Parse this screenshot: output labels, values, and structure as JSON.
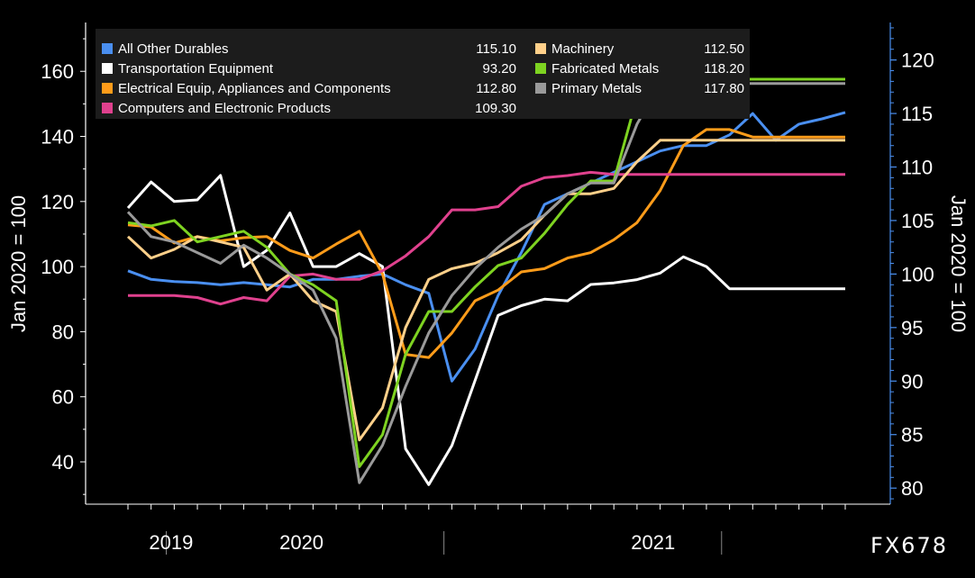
{
  "brand_mark": "FX678",
  "chart_data": {
    "type": "line",
    "ylabel_left": "Jan 2020 = 100",
    "ylabel_right": "Jan 2020 = 100",
    "ylim_left": [
      27,
      175
    ],
    "ylim_right": [
      78.5,
      123.5
    ],
    "yticks_left": [
      40,
      60,
      80,
      100,
      120,
      140,
      160
    ],
    "yticks_right": [
      80,
      85,
      90,
      95,
      100,
      105,
      110,
      115,
      120
    ],
    "year_labels": [
      "2019",
      "2020",
      "2021"
    ],
    "x": [
      "2018-11",
      "2018-12",
      "2019-01",
      "2019-02",
      "2019-03",
      "2019-04",
      "2019-05",
      "2019-06",
      "2019-07",
      "2019-08",
      "2019-09",
      "2019-10",
      "2019-11",
      "2019-12",
      "2020-01",
      "2020-02",
      "2020-03",
      "2020-04",
      "2020-05",
      "2020-06",
      "2020-07",
      "2020-08",
      "2020-09",
      "2020-10",
      "2020-11",
      "2020-12",
      "2021-01",
      "2021-02",
      "2021-03",
      "2021-04",
      "2021-05",
      "2021-06"
    ],
    "legend_placement": "top-left",
    "grid": false,
    "series": [
      {
        "name": "All Other Durables",
        "value_label": "115.10",
        "color": "#4a8ff0",
        "axis": "right",
        "values": [
          100.3,
          99.5,
          99.3,
          99.2,
          99.0,
          99.2,
          99.0,
          98.8,
          99.5,
          99.5,
          99.8,
          100.0,
          99.0,
          98.2,
          90.0,
          93.0,
          98.0,
          102.0,
          106.5,
          107.5,
          108.5,
          109.5,
          110.5,
          111.5,
          112.0,
          112.0,
          113.0,
          115.0,
          112.5,
          114.0,
          114.5,
          115.1
        ]
      },
      {
        "name": "Transportation Equipment",
        "value_label": "93.20",
        "color": "#ffffff",
        "axis": "left",
        "values": [
          118,
          126,
          120,
          120.5,
          128,
          100,
          105,
          116.5,
          100,
          100,
          104,
          100,
          44,
          33,
          45,
          65,
          85,
          88,
          90,
          89.5,
          94.5,
          95,
          96,
          98,
          103,
          100,
          93.2,
          93.2,
          93.2,
          93.2,
          93.2,
          93.2
        ]
      },
      {
        "name": "Electrical Equip, Appliances and Components",
        "value_label": "112.80",
        "color": "#ff9c1a",
        "axis": "right",
        "values": [
          104.6,
          104.4,
          102.9,
          103.5,
          103.1,
          103.4,
          103.5,
          102.2,
          101.5,
          102.8,
          104.0,
          100.0,
          92.5,
          92.2,
          94.5,
          97.5,
          98.5,
          100.2,
          100.5,
          101.5,
          102.0,
          103.2,
          104.8,
          107.8,
          112.0,
          113.5,
          113.5,
          112.8,
          112.8,
          112.8,
          112.8,
          112.8
        ]
      },
      {
        "name": "Computers and Electronic Products",
        "value_label": "109.30",
        "color": "#e0418e",
        "axis": "right",
        "values": [
          98.0,
          98.0,
          98.0,
          97.8,
          97.2,
          97.8,
          97.5,
          99.8,
          100.0,
          99.5,
          99.5,
          100.3,
          101.7,
          103.5,
          106.0,
          106.0,
          106.3,
          108.2,
          109.0,
          109.2,
          109.5,
          109.3,
          109.3,
          109.3,
          109.3,
          109.3,
          109.3,
          109.3,
          109.3,
          109.3,
          109.3,
          109.3
        ]
      },
      {
        "name": "Machinery",
        "value_label": "112.50",
        "color": "#ffd08a",
        "axis": "right",
        "values": [
          103.5,
          101.5,
          102.3,
          103.5,
          103.0,
          102.5,
          98.5,
          100.0,
          97.5,
          96.5,
          84.5,
          87.5,
          95.0,
          99.5,
          100.5,
          101.0,
          102.0,
          103.2,
          105.5,
          107.5,
          107.5,
          108.0,
          110.5,
          112.5,
          112.5,
          112.5,
          112.5,
          112.5,
          112.5,
          112.5,
          112.5,
          112.5
        ]
      },
      {
        "name": "Fabricated Metals",
        "value_label": "118.20",
        "color": "#7ed321",
        "axis": "right",
        "values": [
          104.8,
          104.5,
          105.0,
          103.0,
          103.5,
          104.0,
          102.5,
          100.0,
          99.0,
          97.5,
          82.0,
          85.0,
          92.5,
          96.5,
          96.5,
          98.8,
          100.8,
          101.5,
          103.8,
          106.5,
          108.7,
          108.7,
          116.5,
          118.2,
          118.2,
          118.2,
          118.2,
          118.2,
          118.2,
          118.2,
          118.2,
          118.2
        ]
      },
      {
        "name": "Primary Metals",
        "value_label": "117.80",
        "color": "#9a9a9a",
        "axis": "right",
        "values": [
          105.8,
          103.5,
          103.0,
          102.0,
          101.0,
          102.7,
          101.5,
          100.0,
          98.5,
          94.0,
          80.5,
          84.0,
          89.5,
          94.5,
          98.0,
          100.5,
          102.5,
          104.2,
          105.5,
          107.5,
          108.5,
          108.5,
          114.0,
          117.8,
          117.8,
          117.8,
          117.8,
          117.8,
          117.8,
          117.8,
          117.8,
          117.8
        ]
      }
    ]
  }
}
